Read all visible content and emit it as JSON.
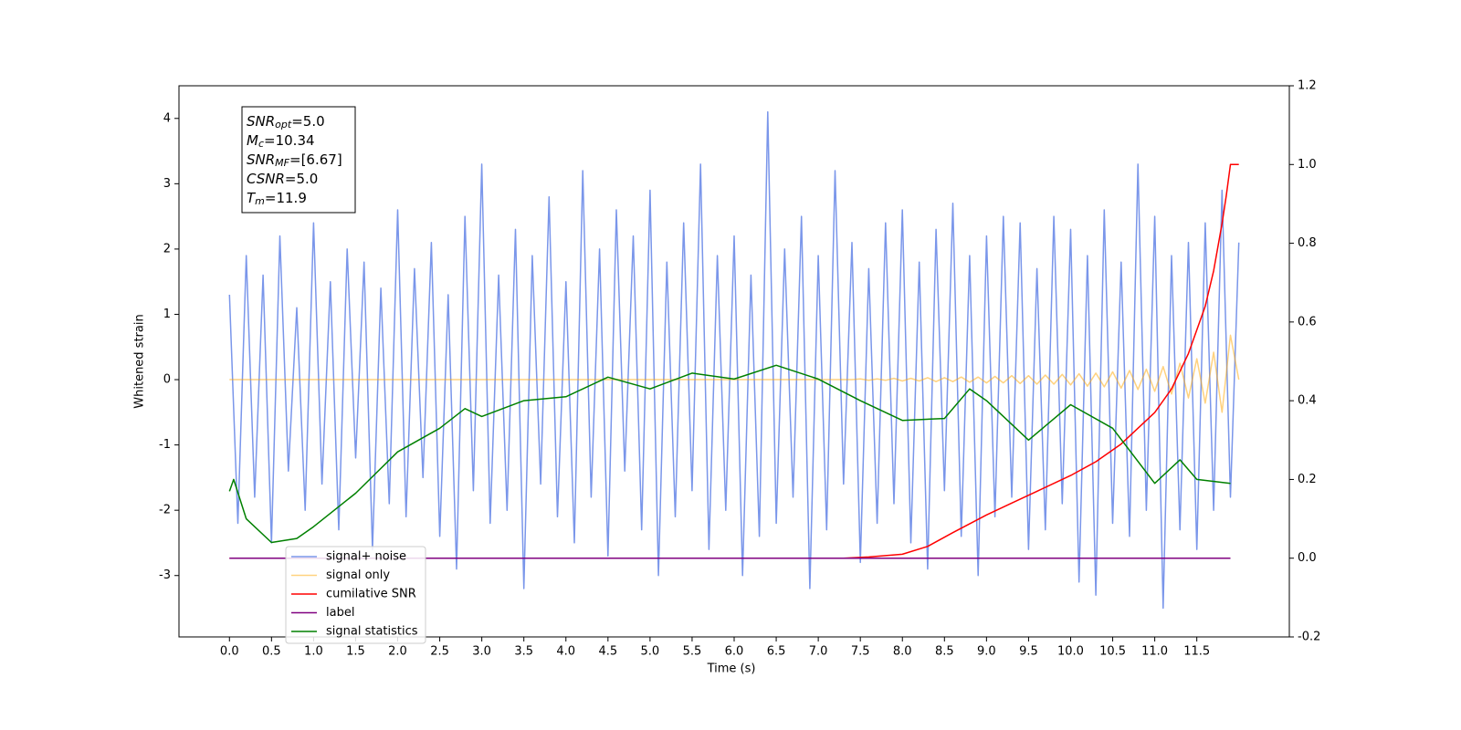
{
  "chart_data": {
    "type": "line",
    "xlabel": "Time (s)",
    "ylabel": "Whitened strain",
    "xlim": [
      -0.6,
      12.6
    ],
    "ylim": [
      -3.94,
      4.5
    ],
    "y2lim": [
      -0.2,
      1.2
    ],
    "xticks": [
      {
        "value": 0,
        "label": "0.0"
      },
      {
        "value": 0.5,
        "label": "0.5"
      },
      {
        "value": 1,
        "label": "1.0"
      },
      {
        "value": 1.5,
        "label": "1.5"
      },
      {
        "value": 2,
        "label": "2.0"
      },
      {
        "value": 2.5,
        "label": "2.5"
      },
      {
        "value": 3,
        "label": "3.0"
      },
      {
        "value": 3.5,
        "label": "3.5"
      },
      {
        "value": 4,
        "label": "4.0"
      },
      {
        "value": 4.5,
        "label": "4.5"
      },
      {
        "value": 5,
        "label": "5.0"
      },
      {
        "value": 5.5,
        "label": "5.5"
      },
      {
        "value": 6,
        "label": "6.0"
      },
      {
        "value": 6.5,
        "label": "6.5"
      },
      {
        "value": 7,
        "label": "7.0"
      },
      {
        "value": 7.5,
        "label": "7.5"
      },
      {
        "value": 8,
        "label": "8.0"
      },
      {
        "value": 8.5,
        "label": "8.5"
      },
      {
        "value": 9,
        "label": "9.0"
      },
      {
        "value": 9.5,
        "label": "9.5"
      },
      {
        "value": 10,
        "label": "10.0"
      },
      {
        "value": 10.5,
        "label": "10.5"
      },
      {
        "value": 11,
        "label": "11.0"
      },
      {
        "value": 11.5,
        "label": "11.5"
      }
    ],
    "yticks": [
      -3,
      -2,
      -1,
      0,
      1,
      2,
      3,
      4
    ],
    "y2ticks": [
      -0.2,
      {
        "value": 0,
        "label": "0.0"
      },
      0.2,
      0.4,
      0.6,
      0.8,
      {
        "value": 1,
        "label": "1.0"
      },
      1.2
    ],
    "annotations": [
      {
        "main": "SNR",
        "sub": "opt",
        "rest": "=5.0"
      },
      {
        "main": "M",
        "sub": "c",
        "rest": "=10.34"
      },
      {
        "main": "SNR",
        "sub": "MF",
        "rest": "=[6.67]"
      },
      {
        "main": "CSNR",
        "sub": null,
        "rest": "=5.0"
      },
      {
        "main": "T",
        "sub": "m",
        "rest": "=11.9"
      }
    ],
    "series": [
      {
        "name": "signal+ noise",
        "color": "#4169e1",
        "alpha": 0.7,
        "x": [
          0.0,
          0.1,
          0.2,
          0.3,
          0.4,
          0.5,
          0.6,
          0.7,
          0.8,
          0.9,
          1.0,
          1.1,
          1.2,
          1.3,
          1.4,
          1.5,
          1.6,
          1.7,
          1.8,
          1.9,
          2.0,
          2.1,
          2.2,
          2.3,
          2.4,
          2.5,
          2.6,
          2.7,
          2.8,
          2.9,
          3.0,
          3.1,
          3.2,
          3.3,
          3.4,
          3.5,
          3.6,
          3.7,
          3.8,
          3.9,
          4.0,
          4.1,
          4.2,
          4.3,
          4.4,
          4.5,
          4.6,
          4.7,
          4.8,
          4.9,
          5.0,
          5.1,
          5.2,
          5.3,
          5.4,
          5.5,
          5.6,
          5.7,
          5.8,
          5.9,
          6.0,
          6.1,
          6.2,
          6.3,
          6.4,
          6.5,
          6.6,
          6.7,
          6.8,
          6.9,
          7.0,
          7.1,
          7.2,
          7.3,
          7.4,
          7.5,
          7.6,
          7.7,
          7.8,
          7.9,
          8.0,
          8.1,
          8.2,
          8.3,
          8.4,
          8.5,
          8.6,
          8.7,
          8.8,
          8.9,
          9.0,
          9.1,
          9.2,
          9.3,
          9.4,
          9.5,
          9.6,
          9.7,
          9.8,
          9.9,
          10.0,
          10.1,
          10.2,
          10.3,
          10.4,
          10.5,
          10.6,
          10.7,
          10.8,
          10.9,
          11.0,
          11.1,
          11.2,
          11.3,
          11.4,
          11.5,
          11.6,
          11.7,
          11.8,
          11.9,
          12.0
        ],
        "values": [
          1.3,
          -2.2,
          1.9,
          -1.8,
          1.6,
          -2.5,
          2.2,
          -1.4,
          1.1,
          -2.0,
          2.4,
          -1.6,
          1.5,
          -2.3,
          2.0,
          -1.2,
          1.8,
          -2.6,
          1.4,
          -1.9,
          2.6,
          -2.1,
          1.7,
          -1.5,
          2.1,
          -2.4,
          1.3,
          -2.9,
          2.5,
          -1.7,
          3.3,
          -2.2,
          1.6,
          -2.0,
          2.3,
          -3.2,
          1.9,
          -1.6,
          2.8,
          -2.1,
          1.5,
          -2.5,
          3.2,
          -1.8,
          2.0,
          -2.7,
          2.6,
          -1.4,
          2.2,
          -2.3,
          2.9,
          -3.0,
          1.8,
          -2.1,
          2.4,
          -1.7,
          3.3,
          -2.6,
          1.9,
          -2.0,
          2.2,
          -3.0,
          1.6,
          -2.4,
          4.1,
          -2.2,
          2.0,
          -1.8,
          2.5,
          -3.2,
          1.9,
          -2.3,
          3.2,
          -1.6,
          2.1,
          -2.8,
          1.7,
          -2.2,
          2.4,
          -1.9,
          2.6,
          -2.5,
          1.8,
          -2.9,
          2.3,
          -1.7,
          2.7,
          -2.4,
          1.9,
          -3.0,
          2.2,
          -2.1,
          2.5,
          -1.8,
          2.4,
          -2.6,
          1.7,
          -2.3,
          2.5,
          -1.9,
          2.3,
          -3.1,
          1.9,
          -3.3,
          2.6,
          -2.2,
          1.8,
          -2.4,
          3.3,
          -2.0,
          2.5,
          -3.5,
          1.9,
          -2.3,
          2.1,
          -2.6,
          2.4,
          -2.0,
          2.9,
          -1.8,
          2.1
        ]
      },
      {
        "name": "signal only",
        "color": "#ffa500",
        "alpha": 0.5,
        "x": [
          0.0,
          7.4,
          7.5,
          7.6,
          7.7,
          7.8,
          7.9,
          8.0,
          8.1,
          8.2,
          8.3,
          8.4,
          8.5,
          8.6,
          8.7,
          8.8,
          8.9,
          9.0,
          9.1,
          9.2,
          9.3,
          9.4,
          9.5,
          9.6,
          9.7,
          9.8,
          9.9,
          10.0,
          10.1,
          10.2,
          10.3,
          10.4,
          10.5,
          10.6,
          10.7,
          10.8,
          10.9,
          11.0,
          11.1,
          11.2,
          11.3,
          11.4,
          11.5,
          11.6,
          11.7,
          11.8,
          11.9,
          12.0
        ],
        "values": [
          0,
          0,
          0.01,
          -0.01,
          0.01,
          -0.01,
          0.02,
          -0.02,
          0.02,
          -0.02,
          0.03,
          -0.03,
          0.03,
          -0.03,
          0.04,
          -0.04,
          0.04,
          -0.05,
          0.05,
          -0.05,
          0.06,
          -0.06,
          0.06,
          -0.07,
          0.07,
          -0.07,
          0.08,
          -0.08,
          0.09,
          -0.1,
          0.1,
          -0.11,
          0.12,
          -0.13,
          0.14,
          -0.15,
          0.16,
          -0.18,
          0.2,
          -0.22,
          0.25,
          -0.28,
          0.32,
          -0.36,
          0.42,
          -0.5,
          0.68,
          0
        ]
      },
      {
        "name": "cumilative SNR",
        "color": "#ff0000",
        "alpha": 1,
        "axis": "y2",
        "x": [
          0.0,
          7.3,
          7.6,
          8.0,
          8.3,
          8.6,
          9.0,
          9.3,
          9.6,
          10.0,
          10.3,
          10.6,
          11.0,
          11.2,
          11.4,
          11.6,
          11.7,
          11.8,
          11.85,
          11.9,
          12.0
        ],
        "values": [
          0,
          0,
          0.003,
          0.01,
          0.03,
          0.065,
          0.11,
          0.14,
          0.17,
          0.21,
          0.245,
          0.29,
          0.37,
          0.43,
          0.52,
          0.64,
          0.73,
          0.85,
          0.92,
          1.0,
          1.0
        ]
      },
      {
        "name": "label",
        "color": "#800080",
        "alpha": 1,
        "axis": "y2",
        "x": [
          0.0,
          11.9
        ],
        "values": [
          0,
          0
        ]
      },
      {
        "name": "signal statistics",
        "color": "#008000",
        "alpha": 1,
        "axis": "y2",
        "x": [
          0.0,
          0.05,
          0.2,
          0.5,
          0.8,
          1.0,
          1.5,
          2.0,
          2.5,
          2.8,
          3.0,
          3.5,
          4.0,
          4.5,
          5.0,
          5.5,
          6.0,
          6.5,
          7.0,
          7.5,
          8.0,
          8.5,
          8.8,
          9.0,
          9.5,
          10.0,
          10.5,
          11.0,
          11.3,
          11.5,
          11.9
        ],
        "values": [
          0.17,
          0.2,
          0.1,
          0.04,
          0.05,
          0.08,
          0.165,
          0.27,
          0.33,
          0.38,
          0.36,
          0.4,
          0.41,
          0.46,
          0.43,
          0.47,
          0.455,
          0.49,
          0.455,
          0.4,
          0.35,
          0.355,
          0.43,
          0.4,
          0.3,
          0.39,
          0.33,
          0.19,
          0.25,
          0.2,
          0.19
        ]
      }
    ]
  }
}
